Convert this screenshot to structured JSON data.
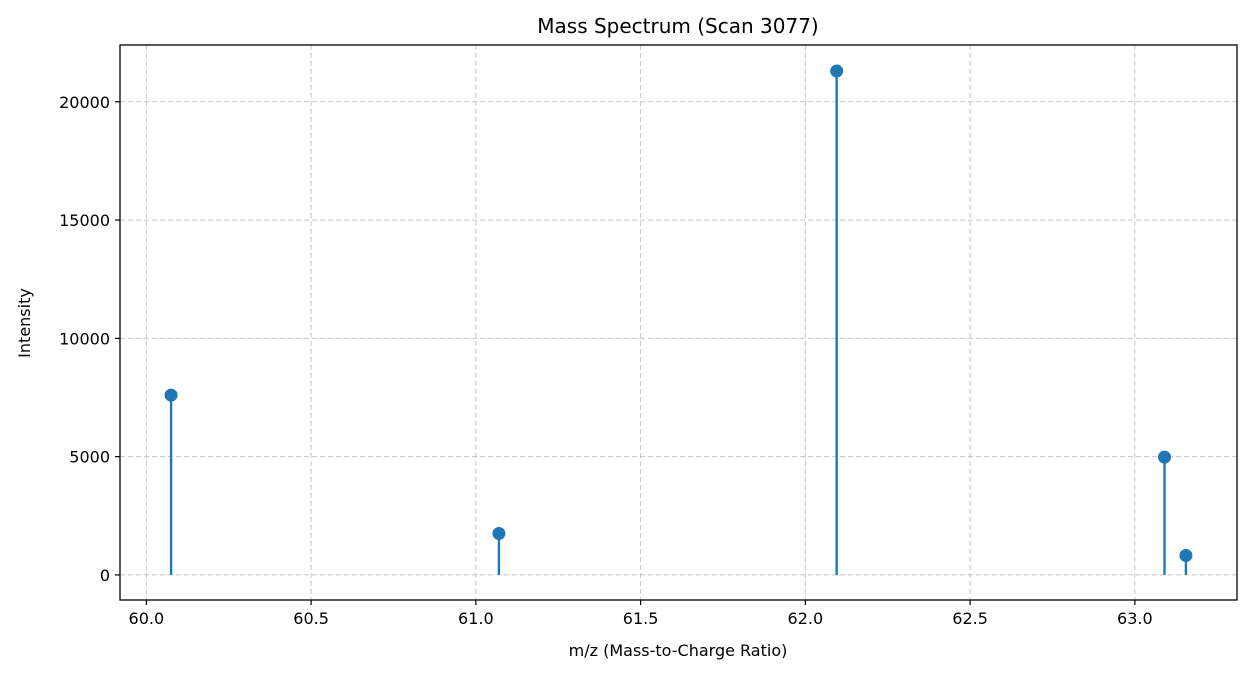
{
  "chart_data": {
    "type": "stem",
    "title": "Mass Spectrum (Scan 3077)",
    "xlabel": "m/z (Mass-to-Charge Ratio)",
    "ylabel": "Intensity",
    "xlim": [
      59.92,
      63.31
    ],
    "ylim": [
      -1060,
      22400
    ],
    "xticks": [
      60.0,
      60.5,
      61.0,
      61.5,
      62.0,
      62.5,
      63.0
    ],
    "xtick_labels": [
      "60.0",
      "60.5",
      "61.0",
      "61.5",
      "62.0",
      "62.5",
      "63.0"
    ],
    "yticks": [
      0,
      5000,
      10000,
      15000,
      20000
    ],
    "ytick_labels": [
      "0",
      "5000",
      "10000",
      "15000",
      "20000"
    ],
    "grid": true,
    "grid_style": "dashed",
    "series": [
      {
        "x": [
          60.075,
          61.07,
          62.095,
          63.09,
          63.155
        ],
        "y": [
          7600,
          1750,
          21300,
          4980,
          820
        ],
        "color": "#1f77b4"
      }
    ]
  }
}
